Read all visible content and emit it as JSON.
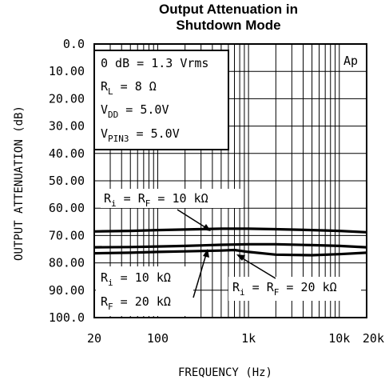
{
  "chart_data": {
    "type": "line",
    "title_lines": [
      "Output Attenuation in",
      "Shutdown Mode"
    ],
    "xlabel": "FREQUENCY (Hz)",
    "ylabel": "OUTPUT ATTENUATION (dB)",
    "x_scale": "log",
    "xlim": [
      20,
      20000
    ],
    "ylim": [
      0,
      100
    ],
    "y_inverted": true,
    "grid": true,
    "x_ticks": [
      20,
      100,
      1000,
      10000,
      20000
    ],
    "x_tick_labels": [
      "20",
      "100",
      "1k",
      "10k",
      "20k"
    ],
    "y_ticks": [
      0,
      10,
      20,
      30,
      40,
      50,
      60,
      70,
      80,
      90,
      100
    ],
    "y_tick_labels": [
      "0.0",
      "10.00",
      "20.00",
      "30.00",
      "40.00",
      "50.00",
      "60.00",
      "70.00",
      "80.00",
      "90.00",
      "100.0"
    ],
    "corner_label": "Ap",
    "conditions": [
      {
        "main": "0 dB = 1.3 Vrms",
        "sub": "",
        "rest": ""
      },
      {
        "main": "R",
        "sub": "L",
        "rest": " = 8 Ω"
      },
      {
        "main": "V",
        "sub": "DD",
        "rest": " = 5.0V"
      },
      {
        "main": "V",
        "sub": "PIN3",
        "rest": " = 5.0V"
      }
    ],
    "annotations": [
      {
        "lines": [
          {
            "a": "R",
            "as": "i",
            "b": " = R",
            "bs": "F",
            "c": " = 10 kΩ"
          }
        ]
      },
      {
        "lines": [
          {
            "a": "R",
            "as": "i",
            "b": " = 10 kΩ",
            "bs": "",
            "c": ""
          },
          {
            "a": "R",
            "as": "F",
            "b": " = 20 kΩ",
            "bs": "",
            "c": ""
          }
        ]
      },
      {
        "lines": [
          {
            "a": "R",
            "as": "i",
            "b": " = R",
            "bs": "F",
            "c": " = 20 kΩ"
          }
        ]
      }
    ],
    "series": [
      {
        "x": [
          20,
          50,
          100,
          200,
          500,
          1000,
          2000,
          5000,
          10000,
          20000
        ],
        "y": [
          68.5,
          68.3,
          68.0,
          67.8,
          67.5,
          67.5,
          67.7,
          68.0,
          68.3,
          68.8
        ]
      },
      {
        "x": [
          20,
          50,
          100,
          200,
          500,
          1000,
          2000,
          5000,
          10000,
          20000
        ],
        "y": [
          74.3,
          74.2,
          74.0,
          73.8,
          73.4,
          73.2,
          73.2,
          73.5,
          73.8,
          74.3
        ]
      },
      {
        "x": [
          20,
          50,
          100,
          200,
          500,
          700,
          1000,
          2000,
          5000,
          10000,
          20000
        ],
        "y": [
          76.5,
          76.3,
          76.0,
          75.8,
          75.5,
          75.3,
          76.0,
          77.0,
          77.2,
          76.8,
          76.3
        ]
      }
    ]
  }
}
